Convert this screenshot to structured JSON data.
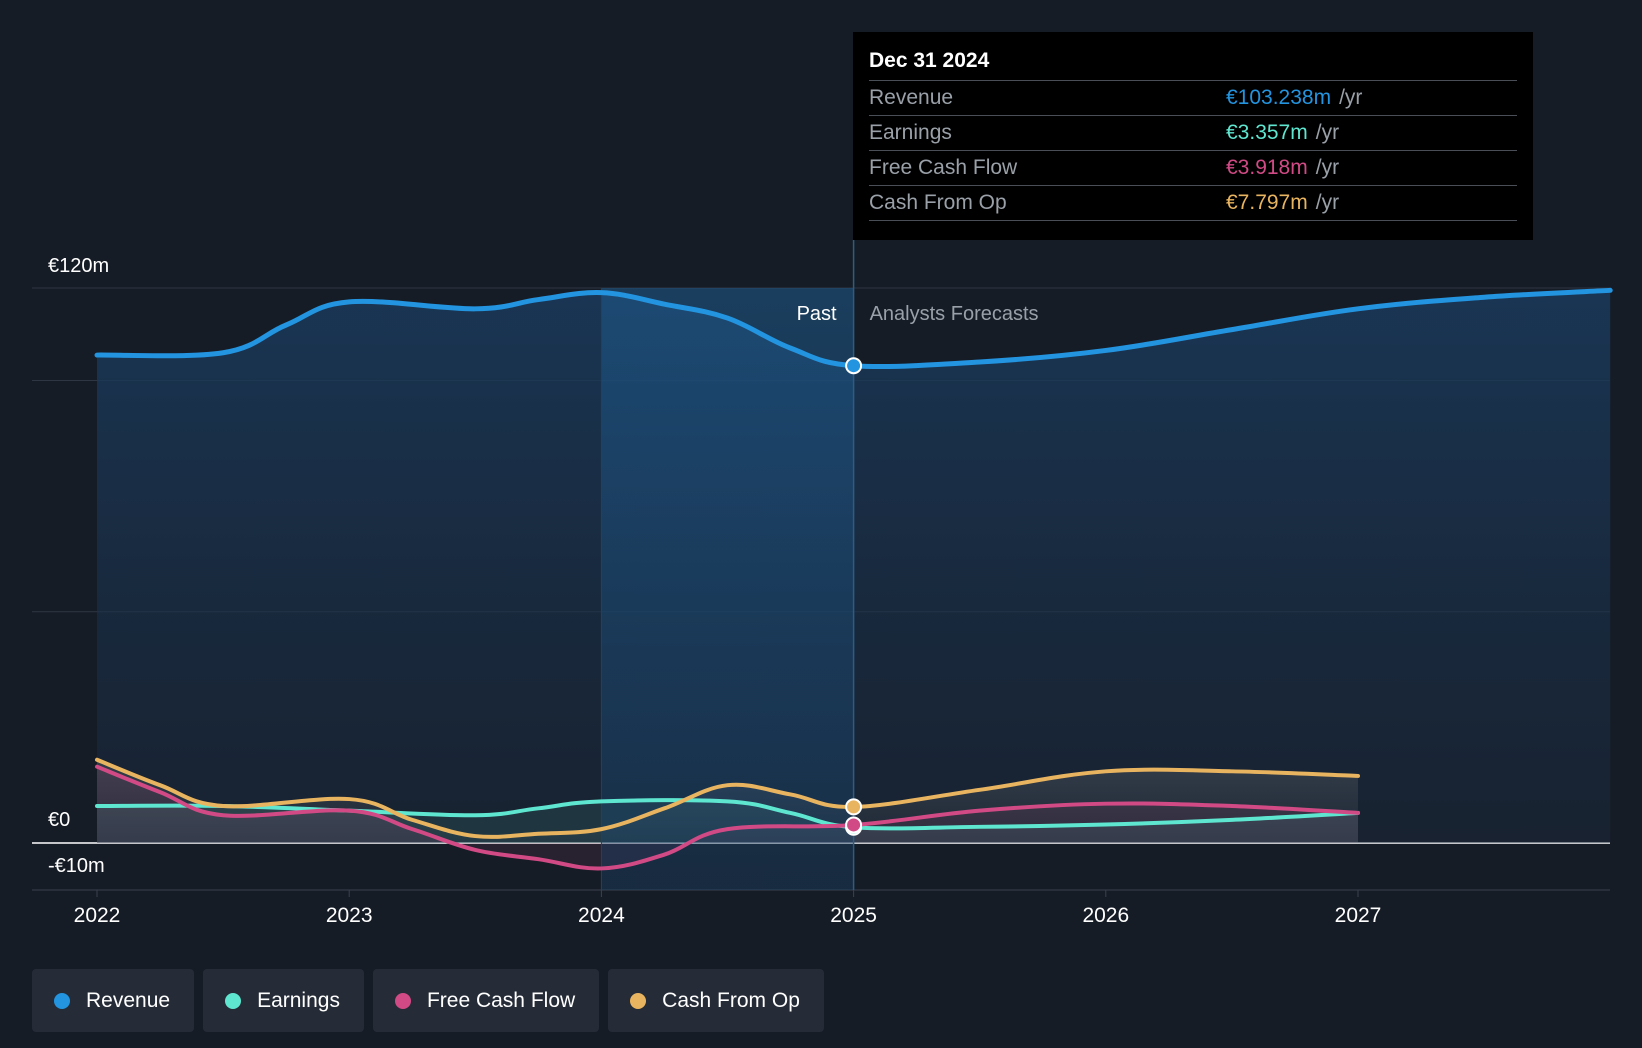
{
  "colors": {
    "revenue": "#2394e0",
    "earnings": "#5ee6d0",
    "free_cash_flow": "#d14a86",
    "cash_from_op": "#e9b45f",
    "background": "#161c26"
  },
  "tooltip": {
    "date": "Dec 31 2024",
    "rows": [
      {
        "name": "Revenue",
        "value": "€103.238m",
        "unit": "/yr"
      },
      {
        "name": "Earnings",
        "value": "€3.357m",
        "unit": "/yr"
      },
      {
        "name": "Free Cash Flow",
        "value": "€3.918m",
        "unit": "/yr"
      },
      {
        "name": "Cash From Op",
        "value": "€7.797m",
        "unit": "/yr"
      }
    ]
  },
  "legend": [
    {
      "label": "Revenue"
    },
    {
      "label": "Earnings"
    },
    {
      "label": "Free Cash Flow"
    },
    {
      "label": "Cash From Op"
    }
  ],
  "chart_data": {
    "type": "line",
    "title": "",
    "xlabel": "",
    "ylabel": "",
    "y_axis_labels": [
      "€120m",
      "€0",
      "-€10m"
    ],
    "ylim": [
      -10,
      120
    ],
    "xlim": [
      2021.75,
      2028.0
    ],
    "x_ticks": [
      "2022",
      "2023",
      "2024",
      "2025",
      "2026",
      "2027"
    ],
    "past_label": "Past",
    "forecast_label": "Analysts Forecasts",
    "divider_x": 2025.0,
    "highlight_start_x": 2024.0,
    "series": [
      {
        "name": "Revenue",
        "x": [
          2022.0,
          2022.5,
          2022.75,
          2023.0,
          2023.5,
          2023.75,
          2024.0,
          2024.25,
          2024.5,
          2024.75,
          2025.0,
          2025.5,
          2026.0,
          2026.5,
          2027.0,
          2027.5,
          2028.0
        ],
        "values": [
          105.5,
          106.0,
          112.0,
          117.0,
          115.5,
          117.5,
          119.0,
          116.5,
          113.5,
          107.0,
          103.2,
          104.0,
          106.5,
          111.0,
          115.5,
          118.0,
          119.5
        ]
      },
      {
        "name": "Earnings",
        "x": [
          2022.0,
          2022.5,
          2023.0,
          2023.5,
          2023.75,
          2024.0,
          2024.5,
          2024.75,
          2025.0,
          2025.5,
          2026.0,
          2026.5,
          2027.0
        ],
        "values": [
          8.0,
          8.0,
          7.0,
          6.0,
          7.5,
          9.0,
          9.0,
          6.5,
          3.4,
          3.5,
          4.0,
          5.0,
          6.5
        ]
      },
      {
        "name": "Free Cash Flow",
        "x": [
          2022.0,
          2022.25,
          2022.5,
          2023.0,
          2023.25,
          2023.5,
          2023.75,
          2024.0,
          2024.25,
          2024.5,
          2025.0,
          2025.5,
          2026.0,
          2026.5,
          2027.0
        ],
        "values": [
          16.5,
          11.0,
          6.0,
          7.0,
          3.0,
          -1.5,
          -3.5,
          -5.5,
          -2.5,
          3.0,
          3.9,
          7.0,
          8.5,
          8.0,
          6.5
        ]
      },
      {
        "name": "Cash From Op",
        "x": [
          2022.0,
          2022.25,
          2022.5,
          2023.0,
          2023.25,
          2023.5,
          2023.75,
          2024.0,
          2024.25,
          2024.5,
          2024.75,
          2025.0,
          2025.5,
          2026.0,
          2026.5,
          2027.0
        ],
        "values": [
          18.0,
          12.5,
          8.0,
          9.5,
          5.0,
          1.5,
          2.0,
          3.0,
          7.5,
          12.5,
          10.5,
          7.8,
          11.5,
          15.5,
          15.5,
          14.5
        ]
      }
    ]
  }
}
